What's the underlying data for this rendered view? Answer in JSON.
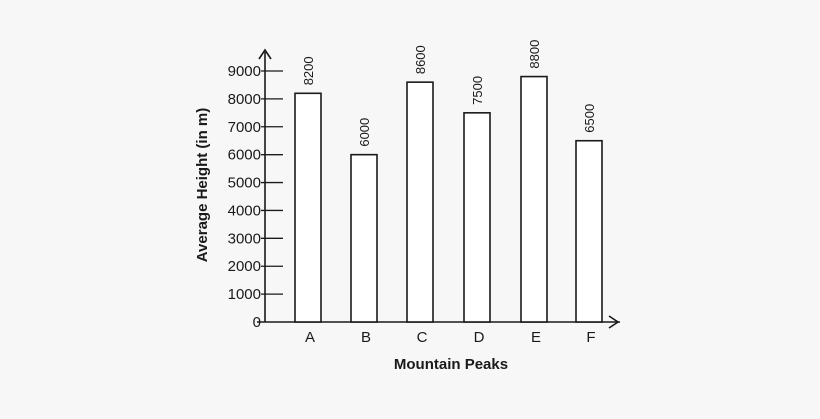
{
  "chart_data": {
    "type": "bar",
    "title": "",
    "xlabel": "Mountain Peaks",
    "ylabel": "Average Height (in m)",
    "categories": [
      "A",
      "B",
      "C",
      "D",
      "E",
      "F"
    ],
    "values": [
      8200,
      6000,
      8600,
      7500,
      8800,
      6500
    ],
    "value_labels": [
      "8200",
      "6000",
      "8600",
      "7500",
      "8800",
      "6500"
    ],
    "ylim": [
      0,
      9000
    ],
    "yticks": [
      0,
      1000,
      2000,
      3000,
      4000,
      5000,
      6000,
      7000,
      8000,
      9000
    ],
    "ytick_labels": [
      "0",
      "1000",
      "2000",
      "3000",
      "4000",
      "5000",
      "6000",
      "7000",
      "8000",
      "9000"
    ],
    "grid": false,
    "bar_fill": "#ffffff",
    "ink_color": "#1a1a1a",
    "background_color": "#f7f7f7"
  }
}
